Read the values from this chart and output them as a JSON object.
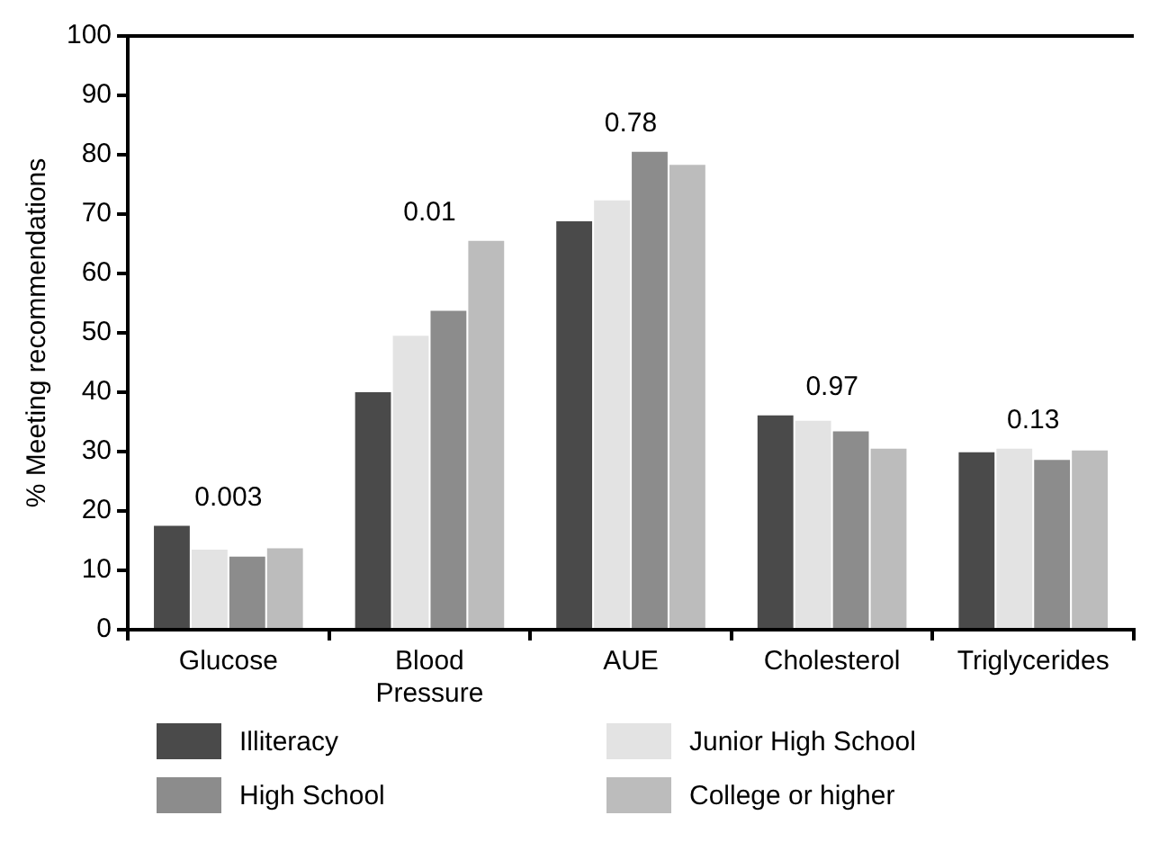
{
  "chart_data": {
    "type": "bar",
    "ylabel": "% Meeting recommendations",
    "categories": [
      "Glucose",
      "Blood Pressure",
      "AUE",
      "Cholesterol",
      "Triglycerides"
    ],
    "series": [
      {
        "name": "Illiteracy",
        "color": "#4a4a4a",
        "values": [
          17.5,
          40,
          68.8,
          36.1,
          29.9
        ]
      },
      {
        "name": "Junior High School",
        "color": "#e3e3e3",
        "values": [
          13.5,
          49.5,
          72.3,
          35.2,
          30.5
        ]
      },
      {
        "name": "High School",
        "color": "#8c8c8c",
        "values": [
          12.3,
          53.7,
          80.5,
          33.4,
          28.6
        ]
      },
      {
        "name": "College or higher",
        "color": "#bcbcbc",
        "values": [
          13.7,
          65.5,
          78.3,
          30.5,
          30.2
        ]
      }
    ],
    "ylim": [
      0,
      100
    ],
    "yticks": [
      0,
      10,
      20,
      30,
      40,
      50,
      60,
      70,
      80,
      90,
      100
    ],
    "grid": false,
    "legend": "bottom",
    "annotations": [
      "0.003",
      "0.01",
      "0.78",
      "0.97",
      "0.13"
    ]
  }
}
